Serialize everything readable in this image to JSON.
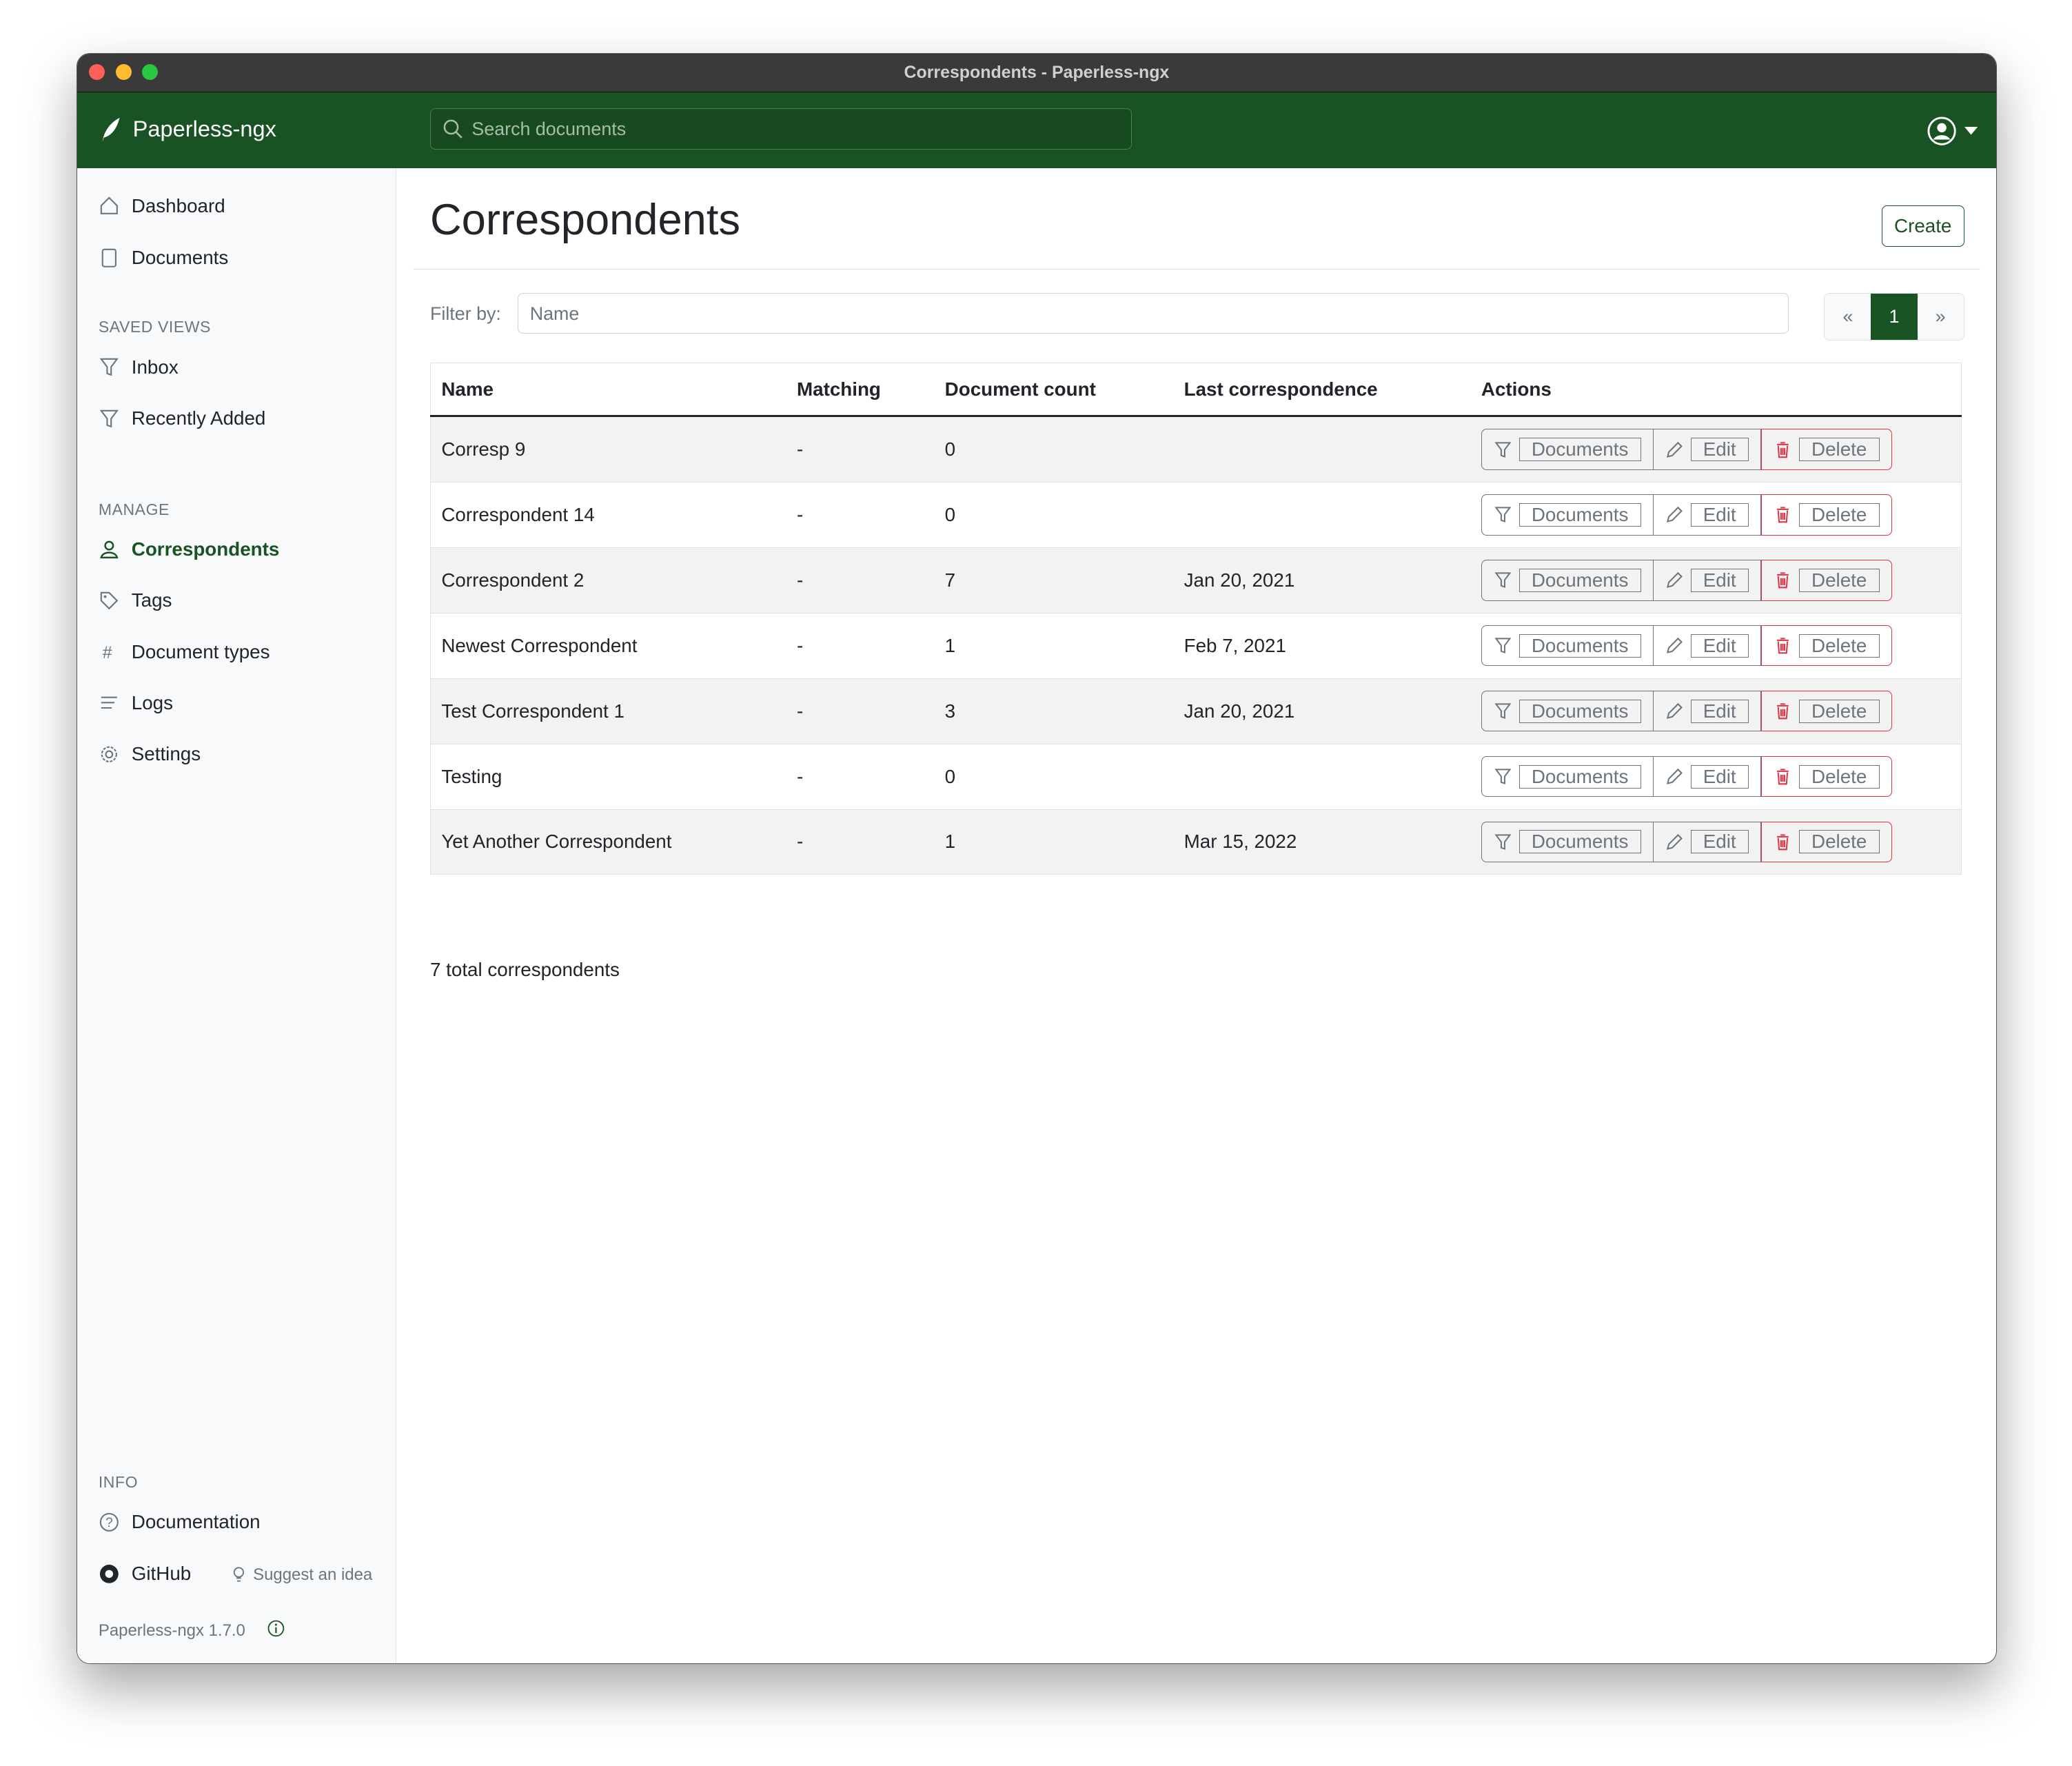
{
  "window": {
    "title": "Correspondents - Paperless-ngx"
  },
  "navbar": {
    "brand": "Paperless-ngx",
    "search_placeholder": "Search documents"
  },
  "sidebar": {
    "main": [
      {
        "label": "Dashboard",
        "icon": "house-icon"
      },
      {
        "label": "Documents",
        "icon": "files-icon"
      }
    ],
    "saved_views_heading": "SAVED VIEWS",
    "saved_views": [
      {
        "label": "Inbox",
        "icon": "funnel-icon"
      },
      {
        "label": "Recently Added",
        "icon": "funnel-icon"
      }
    ],
    "manage_heading": "MANAGE",
    "manage": [
      {
        "label": "Correspondents",
        "icon": "person-icon",
        "active": true
      },
      {
        "label": "Tags",
        "icon": "tag-icon"
      },
      {
        "label": "Document types",
        "icon": "hash-icon"
      },
      {
        "label": "Logs",
        "icon": "list-icon"
      },
      {
        "label": "Settings",
        "icon": "gear-icon"
      }
    ],
    "info_heading": "INFO",
    "documentation": "Documentation",
    "github": "GitHub",
    "suggest": "Suggest an idea",
    "version": "Paperless-ngx 1.7.0"
  },
  "page": {
    "title": "Correspondents",
    "create_label": "Create",
    "filter_label": "Filter by:",
    "filter_placeholder": "Name",
    "pager": {
      "prev": "«",
      "current": "1",
      "next": "»"
    },
    "total": "7 total correspondents"
  },
  "table": {
    "columns": [
      "Name",
      "Matching",
      "Document count",
      "Last correspondence",
      "Actions"
    ],
    "actions": {
      "documents": "Documents",
      "edit": "Edit",
      "delete": "Delete"
    },
    "rows": [
      {
        "name": "Corresp 9",
        "matching": "-",
        "count": "0",
        "last": ""
      },
      {
        "name": "Correspondent 14",
        "matching": "-",
        "count": "0",
        "last": ""
      },
      {
        "name": "Correspondent 2",
        "matching": "-",
        "count": "7",
        "last": "Jan 20, 2021"
      },
      {
        "name": "Newest Correspondent",
        "matching": "-",
        "count": "1",
        "last": "Feb 7, 2021"
      },
      {
        "name": "Test Correspondent 1",
        "matching": "-",
        "count": "3",
        "last": "Jan 20, 2021"
      },
      {
        "name": "Testing",
        "matching": "-",
        "count": "0",
        "last": ""
      },
      {
        "name": "Yet Another Correspondent",
        "matching": "-",
        "count": "1",
        "last": "Mar 15, 2022"
      }
    ]
  },
  "colors": {
    "brand": "#1a5323",
    "danger": "#dc3545",
    "secondary": "#6c757d"
  }
}
